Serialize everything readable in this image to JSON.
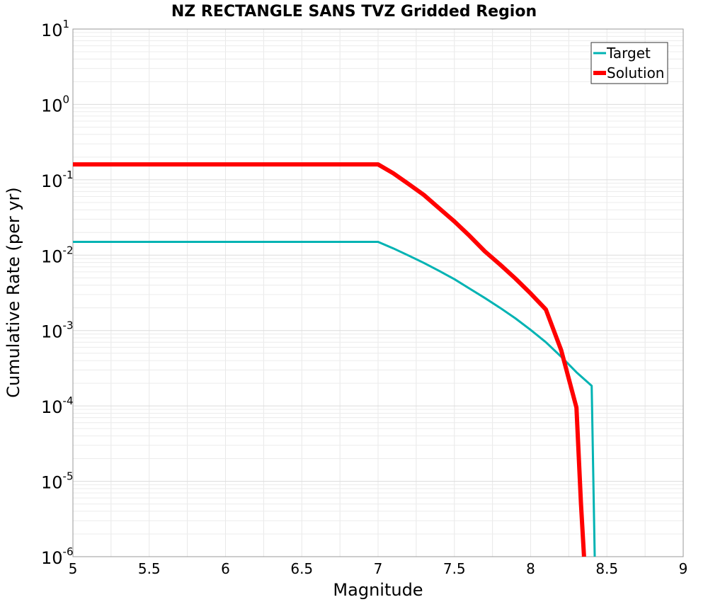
{
  "chart_data": {
    "type": "line",
    "title": "NZ RECTANGLE SANS TVZ Gridded Region",
    "xlabel": "Magnitude",
    "ylabel": "Cumulative Rate (per yr)",
    "xlim": [
      5,
      9
    ],
    "ylim": [
      1e-06,
      10
    ],
    "yscale": "log",
    "grid": true,
    "legend_position": "top-right",
    "x_ticks": [
      "5",
      "5.5",
      "6",
      "6.5",
      "7",
      "7.5",
      "8",
      "8.5",
      "9"
    ],
    "y_ticks": [
      {
        "base": "10",
        "exp": "-6"
      },
      {
        "base": "10",
        "exp": "-5"
      },
      {
        "base": "10",
        "exp": "-4"
      },
      {
        "base": "10",
        "exp": "-3"
      },
      {
        "base": "10",
        "exp": "-2"
      },
      {
        "base": "10",
        "exp": "-1"
      },
      {
        "base": "10",
        "exp": "0"
      },
      {
        "base": "10",
        "exp": "1"
      }
    ],
    "series": [
      {
        "name": "Target",
        "color": "#00b3b3",
        "x": [
          5.0,
          7.0,
          7.1,
          7.2,
          7.3,
          7.4,
          7.5,
          7.6,
          7.7,
          7.8,
          7.9,
          8.0,
          8.1,
          8.2,
          8.3,
          8.4,
          8.42
        ],
        "y": [
          0.015,
          0.015,
          0.0123,
          0.0099,
          0.0079,
          0.0062,
          0.0048,
          0.0036,
          0.0027,
          0.002,
          0.00145,
          0.00102,
          0.0007,
          0.00045,
          0.00028,
          0.000185,
          1e-06
        ]
      },
      {
        "name": "Solution",
        "color": "#ff0000",
        "x": [
          5.0,
          7.0,
          7.1,
          7.2,
          7.3,
          7.4,
          7.5,
          7.6,
          7.7,
          7.8,
          7.9,
          8.0,
          8.1,
          8.2,
          8.3,
          8.33,
          8.35
        ],
        "y": [
          0.16,
          0.16,
          0.122,
          0.088,
          0.063,
          0.042,
          0.028,
          0.018,
          0.0112,
          0.0075,
          0.0049,
          0.0031,
          0.0019,
          0.00055,
          9.5e-05,
          5e-06,
          1e-06
        ]
      }
    ]
  }
}
